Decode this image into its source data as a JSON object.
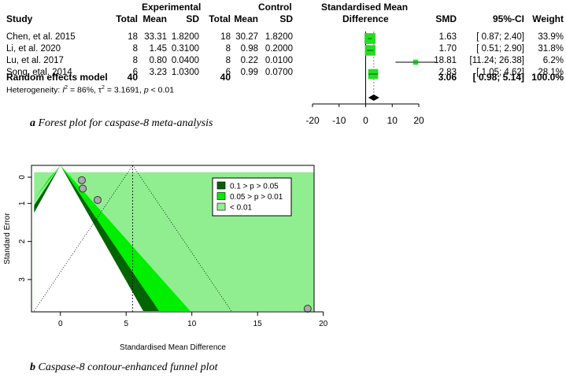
{
  "forest": {
    "headers": {
      "group1": "Experimental",
      "group2": "Control",
      "plot": "Standardised Mean",
      "study": "Study",
      "total1": "Total",
      "mean1": "Mean",
      "sd1": "SD",
      "total2": "Total",
      "mean2": "Mean",
      "sd2": "SD",
      "plot2": "Difference",
      "smd": "SMD",
      "ci": "95%-CI",
      "weight": "Weight"
    },
    "rows": [
      {
        "study": "Chen, et al. 2015",
        "total1": "18",
        "mean1": "33.31",
        "sd1": "1.8200",
        "total2": "18",
        "mean2": "30.27",
        "sd2": "1.8200",
        "smd": "1.63",
        "ci": "[ 0.87;  2.40]",
        "weight": "33.9%"
      },
      {
        "study": "Li, et al. 2020",
        "total1": "8",
        "mean1": "1.45",
        "sd1": "0.3100",
        "total2": "8",
        "mean2": "0.98",
        "sd2": "0.2000",
        "smd": "1.70",
        "ci": "[ 0.51;  2.90]",
        "weight": "31.8%"
      },
      {
        "study": "Lu, et al. 2017",
        "total1": "8",
        "mean1": "0.80",
        "sd1": "0.0400",
        "total2": "8",
        "mean2": "0.22",
        "sd2": "0.0100",
        "smd": "18.81",
        "ci": "[11.24; 26.38]",
        "weight": "6.2%"
      },
      {
        "study": "Song, etal. 2014",
        "total1": "6",
        "mean1": "3.23",
        "sd1": "1.0300",
        "total2": "6",
        "mean2": "0.99",
        "sd2": "0.0700",
        "smd": "2.83",
        "ci": "[ 1.05;  4.62]",
        "weight": "28.1%"
      }
    ],
    "summary": {
      "label": "Random effects model",
      "total1": "40",
      "total2": "40",
      "smd": "3.06",
      "ci": "[ 0.98;  5.14]",
      "weight": "100.0%"
    },
    "heterogeneity": {
      "prefix": "Heterogeneity: ",
      "i2": "86%",
      "tau2": "3.1691",
      "p": "< 0.01"
    }
  },
  "caption_a": {
    "letter": "a",
    "text": " Forest plot for caspase-8 meta-analysis"
  },
  "caption_b": {
    "letter": "b",
    "text": " Caspase-8 contour-enhanced funnel plot"
  },
  "chart_data": [
    {
      "type": "scatter",
      "subtype": "forest",
      "xlim": [
        -20,
        20
      ],
      "x_ticks": [
        -20,
        -10,
        0,
        10,
        20
      ],
      "studies": [
        {
          "name": "Chen, et al. 2015",
          "smd": 1.63,
          "lower": 0.87,
          "upper": 2.4,
          "weight": 33.9
        },
        {
          "name": "Li, et al. 2020",
          "smd": 1.7,
          "lower": 0.51,
          "upper": 2.9,
          "weight": 31.8
        },
        {
          "name": "Lu, et al. 2017",
          "smd": 18.81,
          "lower": 11.24,
          "upper": 26.38,
          "weight": 6.2
        },
        {
          "name": "Song, etal. 2014",
          "smd": 2.83,
          "lower": 1.05,
          "upper": 4.62,
          "weight": 28.1
        }
      ],
      "pooled": {
        "smd": 3.06,
        "lower": 0.98,
        "upper": 5.14
      },
      "colors": {
        "box": "#22dd22",
        "line": "#000000"
      }
    },
    {
      "type": "scatter",
      "subtype": "contour-enhanced funnel",
      "xlabel": "Standardised Mean Difference",
      "ylabel": "Standard Error",
      "xlim": [
        -2.2,
        19.3
      ],
      "ylim": [
        0,
        3.85
      ],
      "x_ticks": [
        0,
        5,
        10,
        15,
        20
      ],
      "y_ticks": [
        0,
        1,
        2,
        3
      ],
      "y_reversed": true,
      "points": [
        {
          "x": 1.63,
          "y": 0.39
        },
        {
          "x": 1.7,
          "y": 0.61
        },
        {
          "x": 2.83,
          "y": 0.91
        },
        {
          "x": 18.81,
          "y": 3.86
        }
      ],
      "pooled_x": 5.5,
      "legend": {
        "position": "top-right",
        "items": [
          {
            "label": "0.1 > p > 0.05",
            "color": "#006400"
          },
          {
            "label": "0.05 > p > 0.01",
            "color": "#00ee00"
          },
          {
            "label": "< 0.01",
            "color": "#90ee90"
          }
        ]
      }
    }
  ]
}
